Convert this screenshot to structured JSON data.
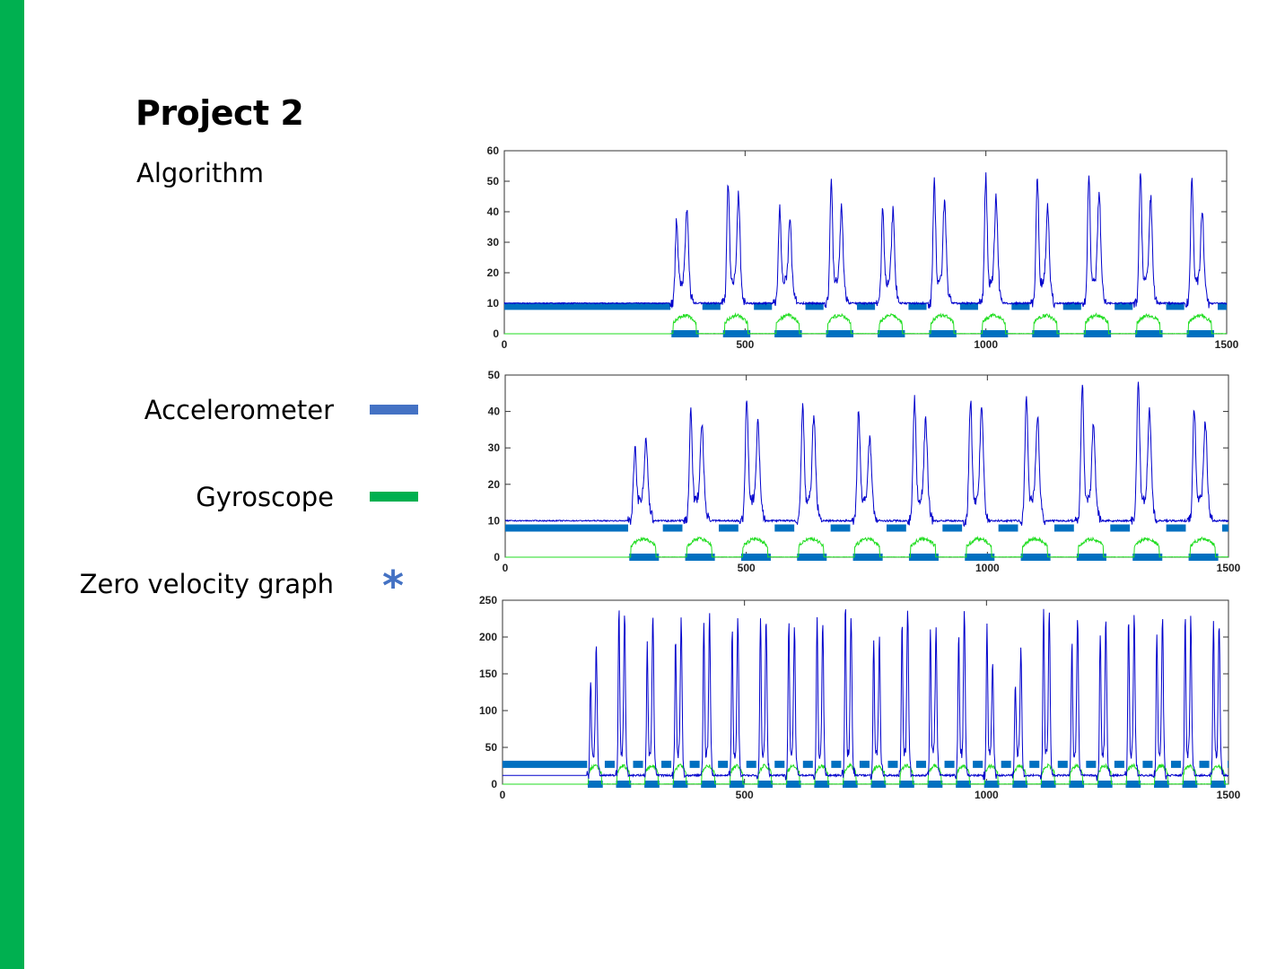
{
  "slide": {
    "title": "Project 2",
    "subtitle": "Algorithm"
  },
  "legend": {
    "accelerometer": {
      "label": "Accelerometer",
      "color": "#4472c4"
    },
    "gyroscope": {
      "label": "Gyroscope",
      "color": "#00b050"
    },
    "zero_velocity": {
      "label": "Zero velocity graph",
      "symbol": "*",
      "color": "#4472c4"
    }
  },
  "colors": {
    "accent_bar": "#00b050",
    "accel_line": "#0000cc",
    "gyro_line": "#22dd22",
    "zero_velocity_marker": "#0070c0"
  },
  "chart_data": [
    {
      "type": "line",
      "xlim": [
        0,
        1500
      ],
      "ylim": [
        0,
        60
      ],
      "xticks": [
        0,
        500,
        1000,
        1500
      ],
      "yticks": [
        0,
        10,
        20,
        30,
        40,
        50,
        60
      ],
      "activity_start": 345,
      "step_period": 107,
      "peaks": [
        34,
        34,
        46,
        40,
        38,
        31,
        48,
        35,
        38,
        34,
        46,
        38,
        48,
        39,
        48,
        35,
        48,
        40,
        50,
        39,
        47,
        34
      ],
      "rest_level": 10,
      "zero_velocity_high": 9,
      "zero_velocity_low": 0,
      "series": [
        {
          "name": "Accelerometer",
          "color": "#0000cc"
        },
        {
          "name": "Gyroscope",
          "color": "#22dd22"
        }
      ]
    },
    {
      "type": "line",
      "xlim": [
        0,
        1500
      ],
      "ylim": [
        0,
        50
      ],
      "xticks": [
        0,
        500,
        1000,
        1500
      ],
      "yticks": [
        0,
        10,
        20,
        30,
        40,
        50
      ],
      "activity_start": 255,
      "step_period": 116,
      "peaks": [
        27,
        28,
        37,
        32,
        41,
        32,
        39,
        34,
        38,
        28,
        40,
        33,
        40,
        36,
        41,
        34,
        44,
        31,
        45,
        35,
        38,
        32,
        40,
        29
      ],
      "rest_level": 10,
      "zero_velocity_high": 8,
      "zero_velocity_low": 0,
      "series": [
        {
          "name": "Accelerometer",
          "color": "#0000cc"
        },
        {
          "name": "Gyroscope",
          "color": "#22dd22"
        }
      ]
    },
    {
      "type": "line",
      "xlim": [
        0,
        1500
      ],
      "ylim": [
        0,
        250
      ],
      "xticks": [
        0,
        500,
        1000,
        1500
      ],
      "yticks": [
        0,
        50,
        100,
        150,
        200,
        250
      ],
      "activity_start": 175,
      "step_period": 58.5,
      "peaks": [
        125,
        160,
        225,
        210,
        175,
        205,
        190,
        200,
        210,
        205,
        195,
        200,
        215,
        200,
        205,
        195,
        215,
        200,
        225,
        205,
        185,
        175,
        200,
        215,
        195,
        185,
        195,
        205,
        200,
        145
      ],
      "rest_level": 12,
      "zero_velocity_high": 27,
      "zero_velocity_low": 0,
      "series": [
        {
          "name": "Accelerometer",
          "color": "#0000cc"
        },
        {
          "name": "Gyroscope",
          "color": "#22dd22"
        }
      ]
    }
  ]
}
